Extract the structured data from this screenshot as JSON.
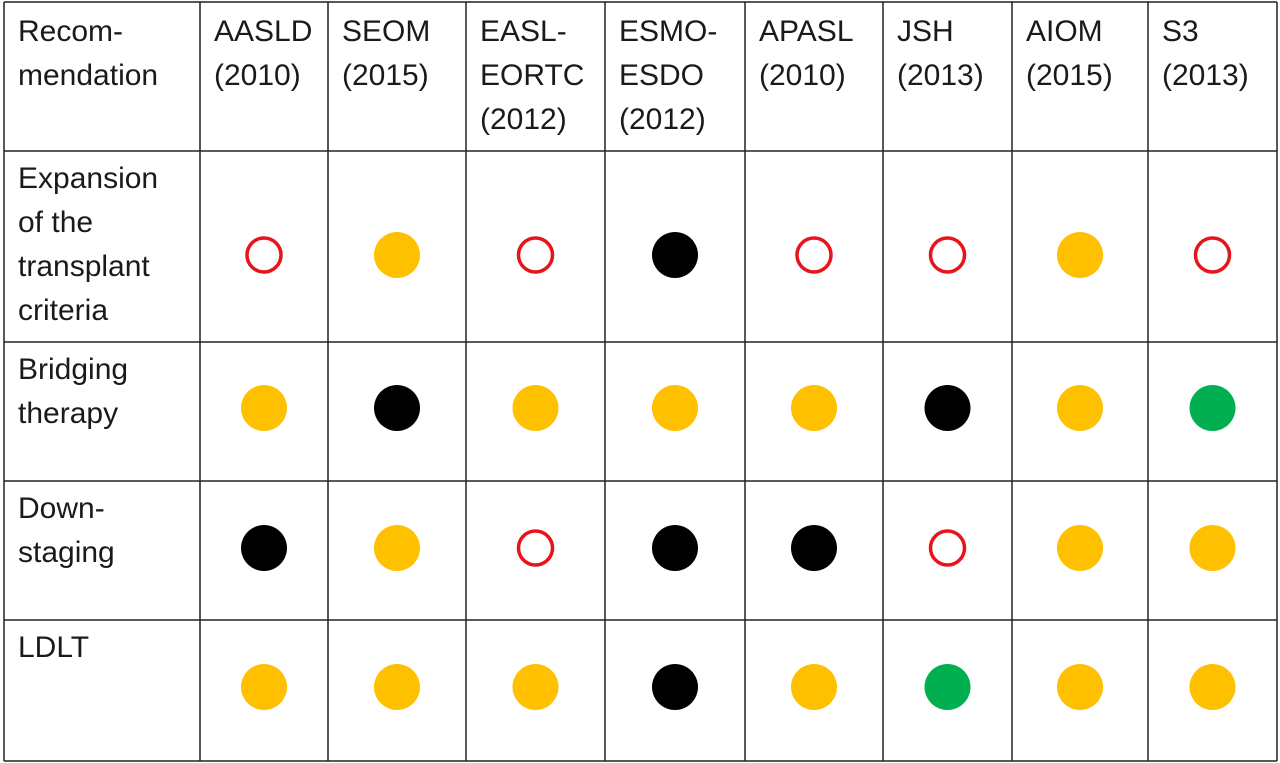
{
  "table": {
    "header": [
      [
        "Recom-",
        "mendation"
      ],
      [
        "AASLD",
        "(2010)"
      ],
      [
        "SEOM",
        "(2015)"
      ],
      [
        "EASL-",
        "EORTC",
        "(2012)"
      ],
      [
        "ESMO-",
        "ESDO",
        "(2012)"
      ],
      [
        "APASL",
        "(2010)"
      ],
      [
        "JSH",
        "(2013)"
      ],
      [
        "AIOM",
        "(2015)"
      ],
      [
        "S3",
        "(2013)"
      ]
    ],
    "rows": [
      {
        "label": [
          "Expansion",
          "of the",
          "transplant",
          "criteria"
        ],
        "cells": [
          {
            "color": "#e8141c",
            "hollow": true
          },
          {
            "color": "#ffc000",
            "hollow": false
          },
          {
            "color": "#e8141c",
            "hollow": true
          },
          {
            "color": "#000000",
            "hollow": false
          },
          {
            "color": "#e8141c",
            "hollow": true
          },
          {
            "color": "#e8141c",
            "hollow": true
          },
          {
            "color": "#ffc000",
            "hollow": false
          },
          {
            "color": "#e8141c",
            "hollow": true
          }
        ]
      },
      {
        "label": [
          "Bridging",
          "therapy"
        ],
        "cells": [
          {
            "color": "#ffc000",
            "hollow": false
          },
          {
            "color": "#000000",
            "hollow": false
          },
          {
            "color": "#ffc000",
            "hollow": false
          },
          {
            "color": "#ffc000",
            "hollow": false
          },
          {
            "color": "#ffc000",
            "hollow": false
          },
          {
            "color": "#000000",
            "hollow": false
          },
          {
            "color": "#ffc000",
            "hollow": false
          },
          {
            "color": "#00b050",
            "hollow": false
          }
        ]
      },
      {
        "label": [
          "Down-",
          "staging"
        ],
        "cells": [
          {
            "color": "#000000",
            "hollow": false
          },
          {
            "color": "#ffc000",
            "hollow": false
          },
          {
            "color": "#e8141c",
            "hollow": true
          },
          {
            "color": "#000000",
            "hollow": false
          },
          {
            "color": "#000000",
            "hollow": false
          },
          {
            "color": "#e8141c",
            "hollow": true
          },
          {
            "color": "#ffc000",
            "hollow": false
          },
          {
            "color": "#ffc000",
            "hollow": false
          }
        ]
      },
      {
        "label": [
          "LDLT"
        ],
        "cells": [
          {
            "color": "#ffc000",
            "hollow": false
          },
          {
            "color": "#ffc000",
            "hollow": false
          },
          {
            "color": "#ffc000",
            "hollow": false
          },
          {
            "color": "#000000",
            "hollow": false
          },
          {
            "color": "#ffc000",
            "hollow": false
          },
          {
            "color": "#00b050",
            "hollow": false
          },
          {
            "color": "#ffc000",
            "hollow": false
          },
          {
            "color": "#ffc000",
            "hollow": false
          }
        ]
      }
    ]
  }
}
